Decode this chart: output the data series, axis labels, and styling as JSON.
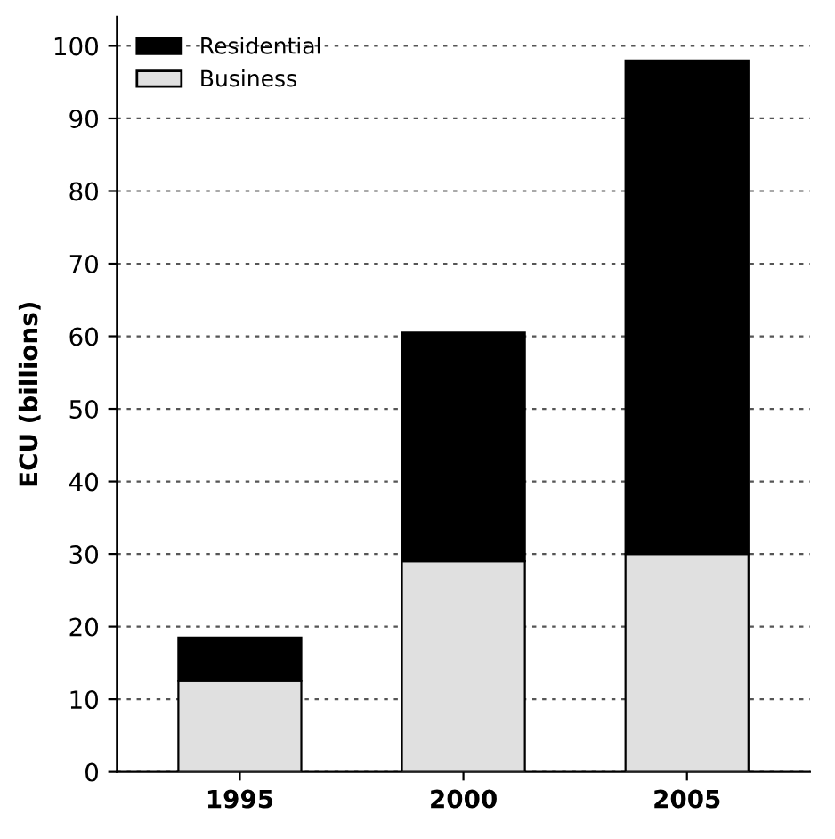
{
  "chart_data": {
    "type": "bar",
    "stacked": true,
    "ylabel": "ECU (billions)",
    "categories": [
      "1995",
      "2000",
      "2005"
    ],
    "series": [
      {
        "name": "Business",
        "color": "#e0e0e0",
        "values": [
          12.5,
          29,
          30
        ]
      },
      {
        "name": "Residential",
        "color": "#000000",
        "values": [
          6,
          31.5,
          68
        ]
      }
    ],
    "ylim": [
      0,
      104
    ],
    "yticks": [
      0,
      10,
      20,
      30,
      40,
      50,
      60,
      70,
      80,
      90,
      100
    ],
    "grid": "y",
    "legend": "top left"
  }
}
